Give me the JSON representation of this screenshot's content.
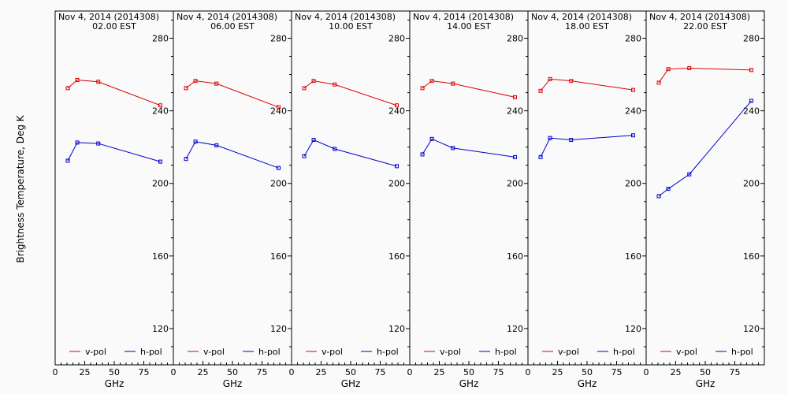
{
  "chart_data": {
    "type": "line",
    "ylabel": "Brightness Temperature, Deg K",
    "ylim": [
      100,
      295
    ],
    "xlim": [
      0,
      100
    ],
    "y_ticks": [
      120,
      160,
      200,
      240,
      280
    ],
    "x_ticks": [
      0,
      25,
      50,
      75,
      100
    ],
    "x_tick_labels": [
      "0",
      "25",
      "50",
      "75",
      ""
    ],
    "grid": false,
    "legend_placement": "bottom",
    "colors": {
      "v-pol": "#dd0000",
      "h-pol": "#0000cc"
    },
    "panels": [
      {
        "date_line": "Nov  4, 2014 (2014308)",
        "time_line": "02.00 EST",
        "xlabel": "GHz",
        "x": [
          10.7,
          18.7,
          36.5,
          89.0
        ],
        "series": [
          {
            "name": "v-pol",
            "values": [
              252.5,
              257.0,
              256.0,
              243.0
            ]
          },
          {
            "name": "h-pol",
            "values": [
              212.5,
              222.5,
              222.0,
              212.0
            ]
          }
        ]
      },
      {
        "date_line": "Nov  4, 2014 (2014308)",
        "time_line": "06.00 EST",
        "xlabel": "GHz",
        "x": [
          10.7,
          18.7,
          36.5,
          89.0
        ],
        "series": [
          {
            "name": "v-pol",
            "values": [
              252.5,
              256.5,
              255.0,
              242.0
            ]
          },
          {
            "name": "h-pol",
            "values": [
              213.5,
              223.0,
              221.0,
              208.5
            ]
          }
        ]
      },
      {
        "date_line": "Nov  4, 2014 (2014308)",
        "time_line": "10.00 EST",
        "xlabel": "GHz",
        "x": [
          10.7,
          18.7,
          36.5,
          89.0
        ],
        "series": [
          {
            "name": "v-pol",
            "values": [
              252.5,
              256.5,
              254.5,
              243.0
            ]
          },
          {
            "name": "h-pol",
            "values": [
              215.0,
              224.0,
              219.0,
              209.5
            ]
          }
        ]
      },
      {
        "date_line": "Nov  4, 2014 (2014308)",
        "time_line": "14.00 EST",
        "xlabel": "GHz",
        "x": [
          10.7,
          18.7,
          36.5,
          89.0
        ],
        "series": [
          {
            "name": "v-pol",
            "values": [
              252.5,
              256.5,
              255.0,
              247.5
            ]
          },
          {
            "name": "h-pol",
            "values": [
              216.0,
              224.5,
              219.5,
              214.5
            ]
          }
        ]
      },
      {
        "date_line": "Nov  4, 2014 (2014308)",
        "time_line": "18.00 EST",
        "xlabel": "GHz",
        "x": [
          10.7,
          18.7,
          36.5,
          89.0
        ],
        "series": [
          {
            "name": "v-pol",
            "values": [
              251.0,
              257.5,
              256.5,
              251.5
            ]
          },
          {
            "name": "h-pol",
            "values": [
              214.5,
              225.0,
              224.0,
              226.5
            ]
          }
        ]
      },
      {
        "date_line": "Nov  4, 2014 (2014308)",
        "time_line": "22.00 EST",
        "xlabel": "GHz",
        "x": [
          10.7,
          18.7,
          36.5,
          89.0
        ],
        "series": [
          {
            "name": "v-pol",
            "values": [
              255.5,
              263.0,
              263.5,
              262.5
            ]
          },
          {
            "name": "h-pol",
            "values": [
              193.0,
              197.0,
              205.0,
              245.5
            ]
          }
        ]
      }
    ]
  }
}
